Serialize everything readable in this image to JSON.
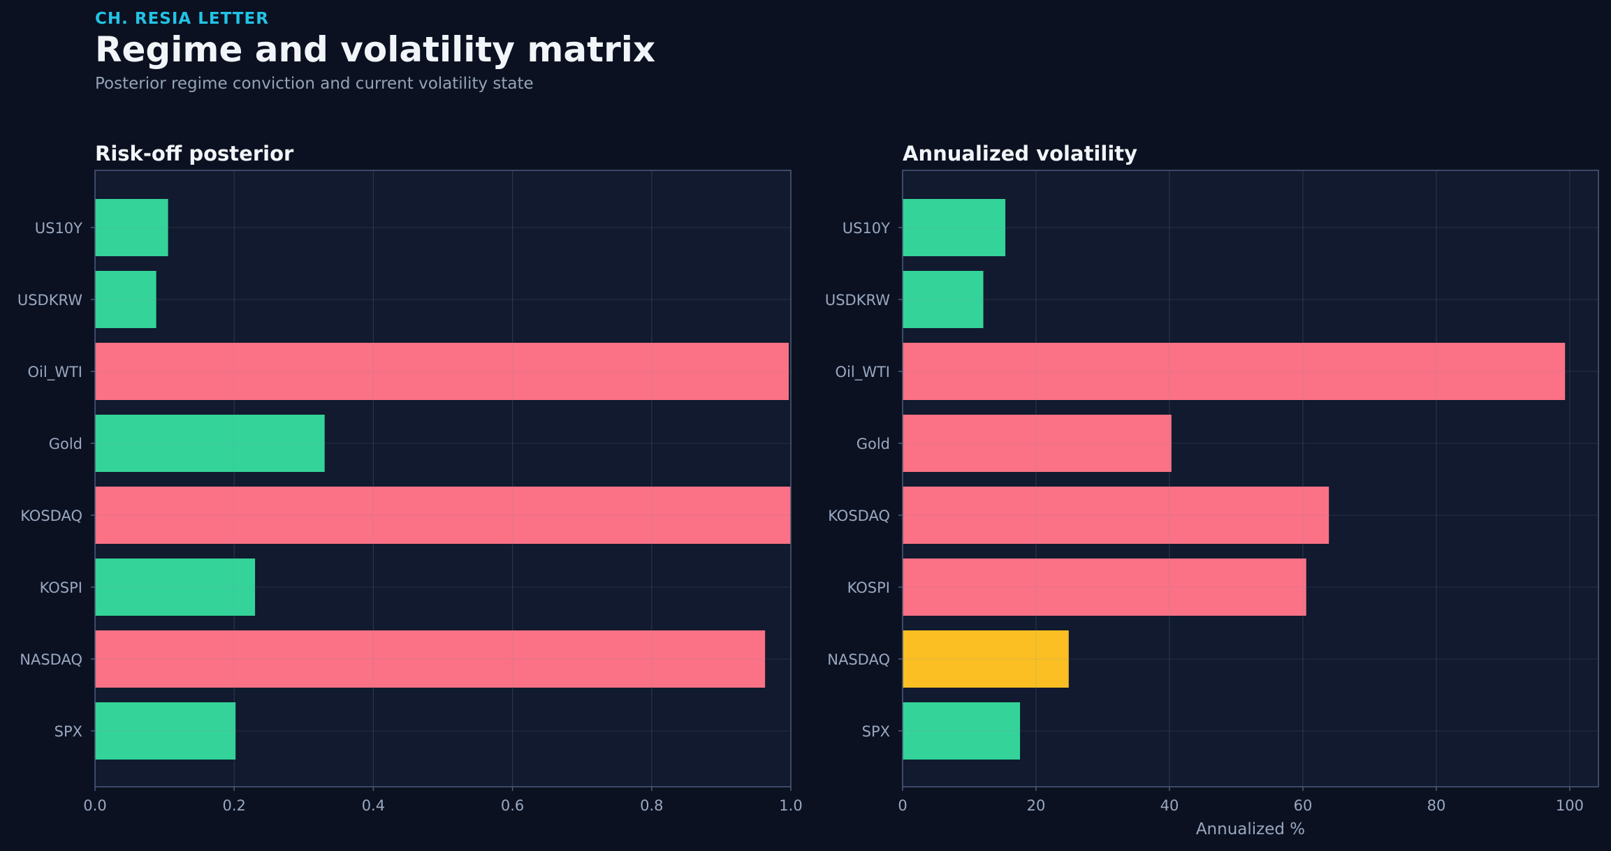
{
  "header": {
    "brand": "CH. RESIA LETTER",
    "title": "Regime and volatility matrix",
    "subtitle": "Posterior regime conviction and current volatility state"
  },
  "colors": {
    "risk_on": "#34d399",
    "risk_off": "#fb7185",
    "caution": "#fbbf24",
    "panel_bg": "#111a2e",
    "grid": "#1f2a40",
    "axis": "#4b5b7a",
    "tick_text": "#9aa8c2",
    "title_text": "#f1f5f9"
  },
  "chart_data": [
    {
      "type": "bar",
      "orientation": "horizontal",
      "title": "Risk-off posterior",
      "xlabel": "",
      "categories": [
        "US10Y",
        "USDKRW",
        "Oil_WTI",
        "Gold",
        "KOSDAQ",
        "KOSPI",
        "NASDAQ",
        "SPX"
      ],
      "values": [
        0.105,
        0.088,
        0.997,
        0.33,
        1.0,
        0.23,
        0.963,
        0.202
      ],
      "bar_colors": [
        "risk_on",
        "risk_on",
        "risk_off",
        "risk_on",
        "risk_off",
        "risk_on",
        "risk_off",
        "risk_on"
      ],
      "xlim": [
        0,
        1.0
      ],
      "xticks": [
        0.0,
        0.2,
        0.4,
        0.6,
        0.8,
        1.0
      ],
      "xtick_labels": [
        "0.0",
        "0.2",
        "0.4",
        "0.6",
        "0.8",
        "1.0"
      ],
      "grid": true
    },
    {
      "type": "bar",
      "orientation": "horizontal",
      "title": "Annualized volatility",
      "xlabel": "Annualized %",
      "categories": [
        "US10Y",
        "USDKRW",
        "Oil_WTI",
        "Gold",
        "KOSDAQ",
        "KOSPI",
        "NASDAQ",
        "SPX"
      ],
      "values": [
        15.4,
        12.1,
        99.3,
        40.3,
        63.9,
        60.5,
        24.9,
        17.6
      ],
      "bar_colors": [
        "risk_on",
        "risk_on",
        "risk_off",
        "risk_off",
        "risk_off",
        "risk_off",
        "caution",
        "risk_on"
      ],
      "xlim": [
        0,
        104.3
      ],
      "xticks": [
        0,
        20,
        40,
        60,
        80,
        100
      ],
      "xtick_labels": [
        "0",
        "20",
        "40",
        "60",
        "80",
        "100"
      ],
      "grid": true
    }
  ]
}
